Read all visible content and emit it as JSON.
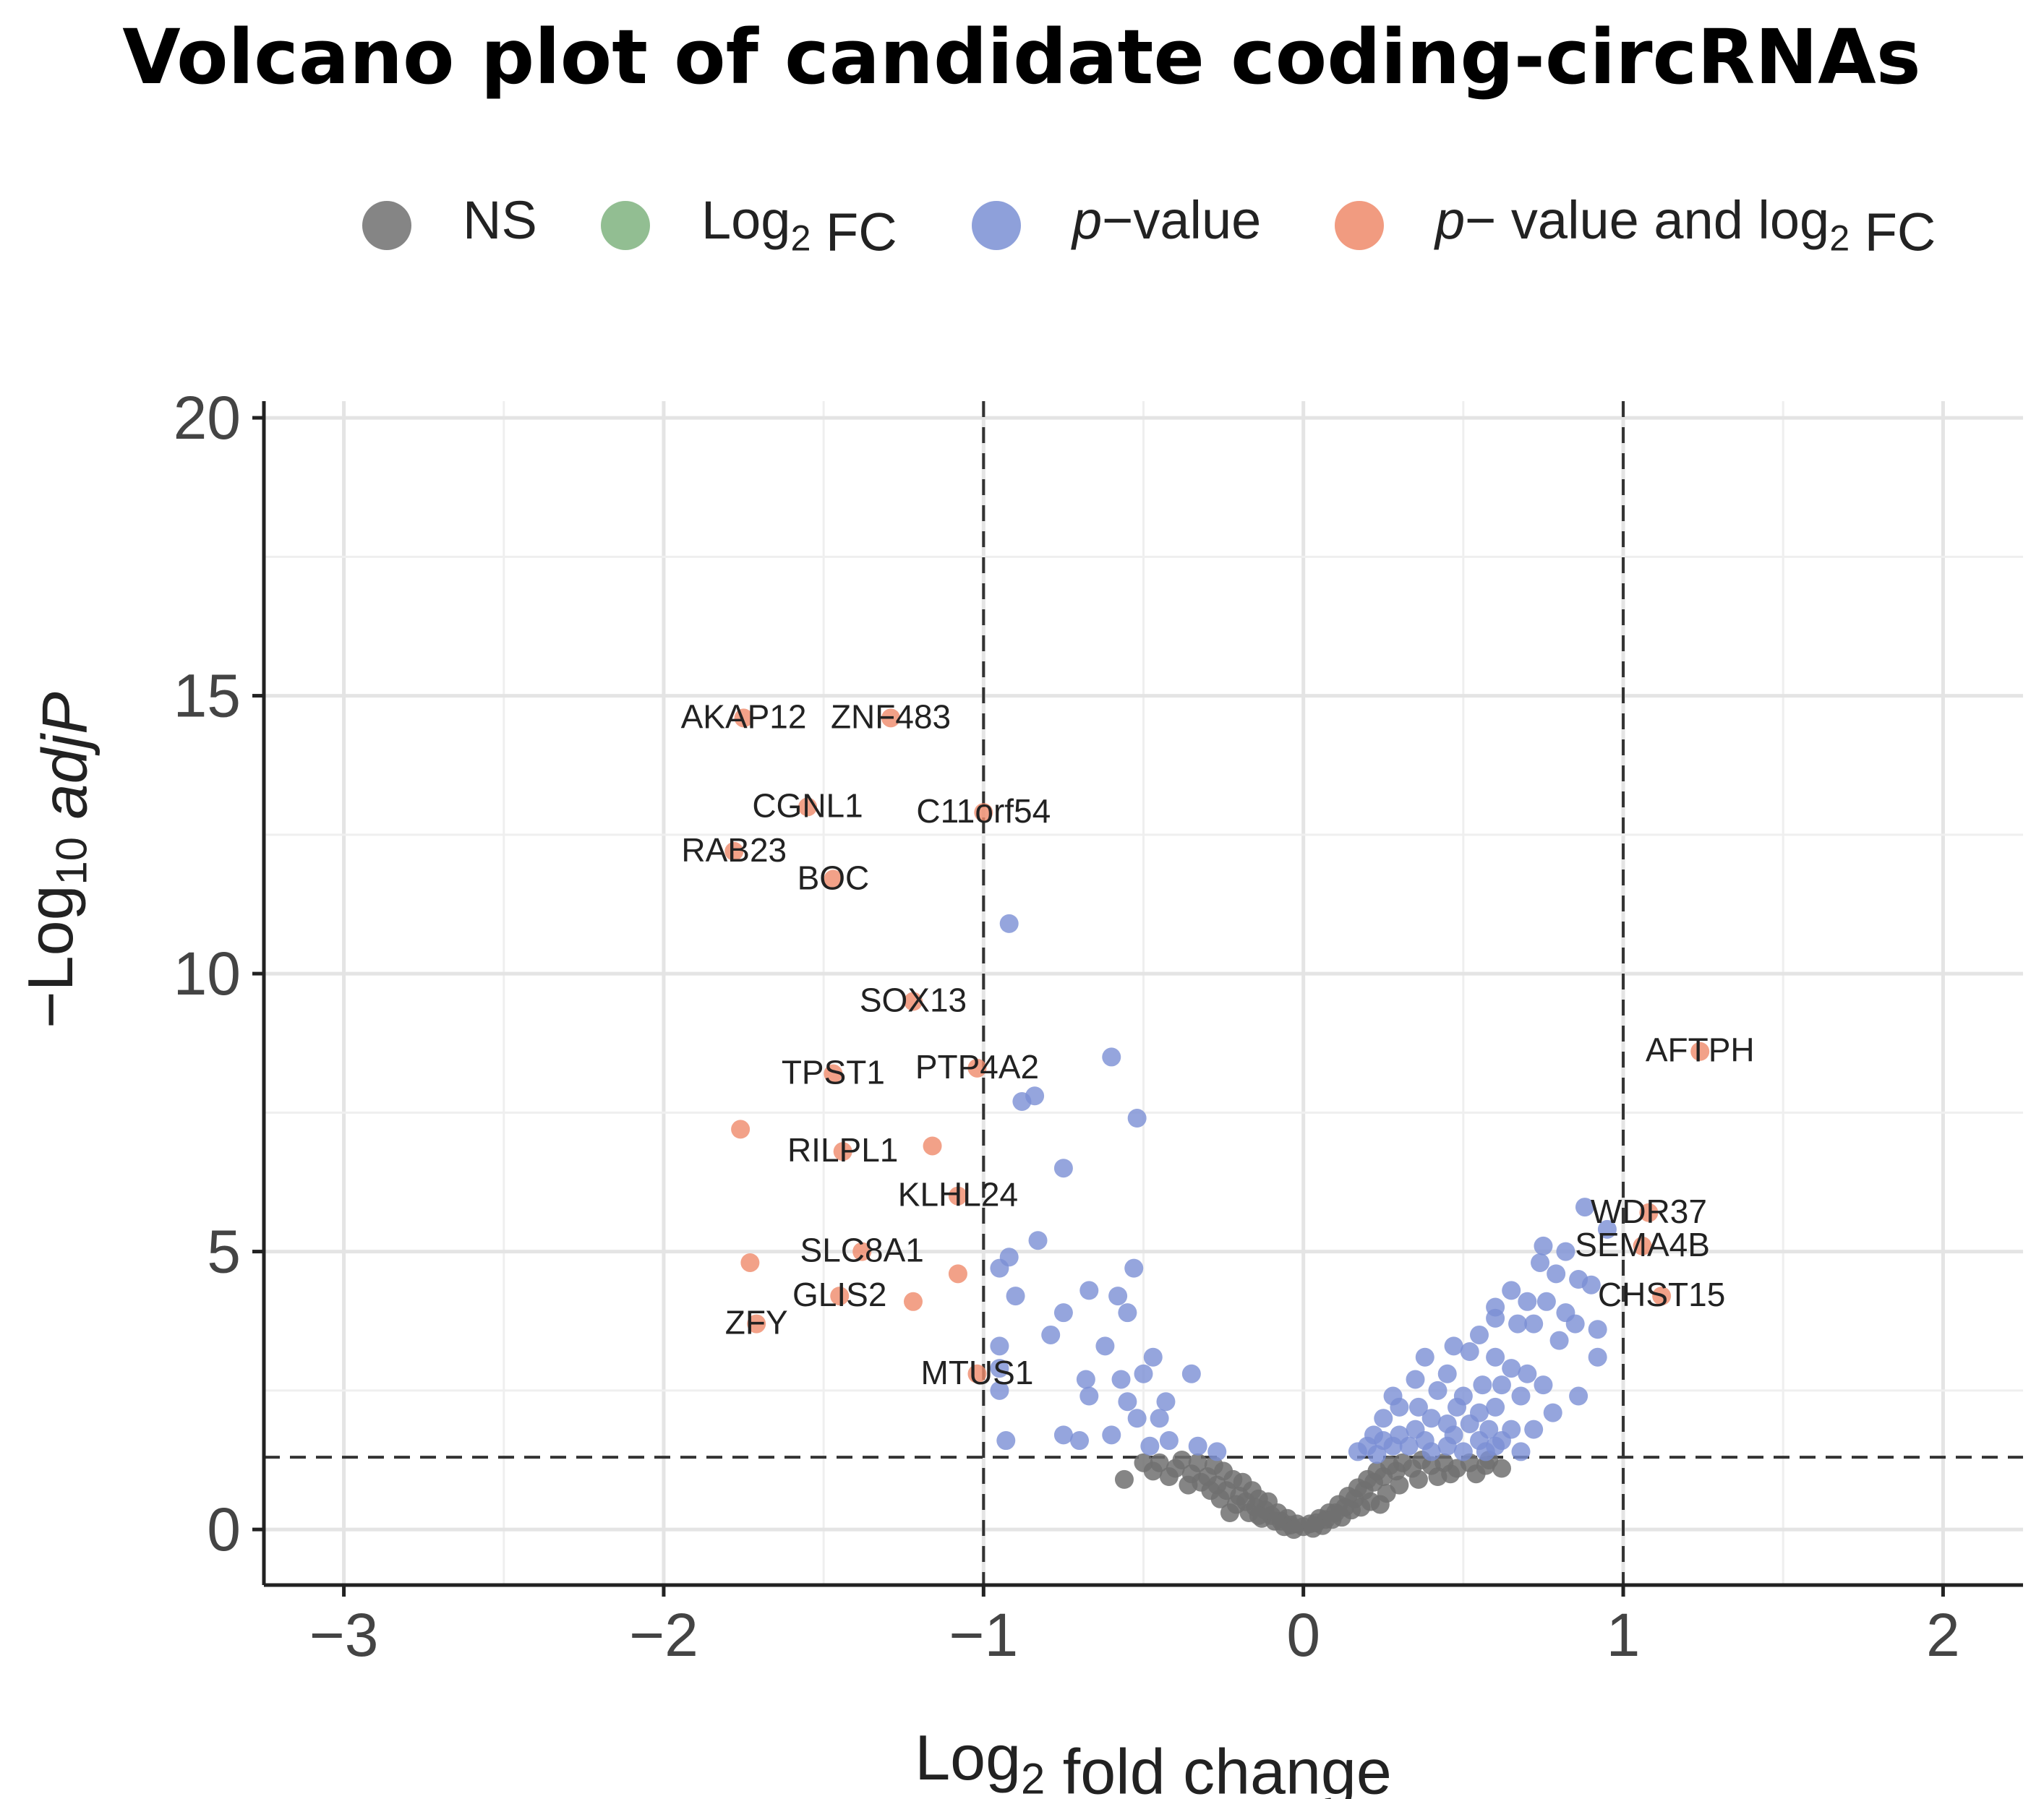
{
  "chart_data": {
    "type": "scatter",
    "title": "Volcano plot of candidate coding-circRNAs",
    "xlabel": "Log2 fold change",
    "ylabel": "−Log10 adjP",
    "xlim": [
      -3.25,
      2.25
    ],
    "ylim": [
      -1,
      20.3
    ],
    "xticks": [
      -3,
      -2,
      -1,
      0,
      1,
      2
    ],
    "xtick_labels": [
      "−3",
      "−2",
      "−1",
      "0",
      "1",
      "2"
    ],
    "yticks": [
      0,
      5,
      10,
      15,
      20
    ],
    "ytick_labels": [
      "0",
      "5",
      "10",
      "15",
      "20"
    ],
    "vlines": [
      -1,
      1
    ],
    "hline": 1.3,
    "grid": true,
    "legend_position": "top",
    "colors": {
      "NS": "#707070",
      "Log2 FC": "#7fb37f",
      "p-value": "#7a8fd4",
      "p-value and log2 FC": "#ef8a6a"
    },
    "legend": [
      {
        "key": "NS",
        "parts": [
          {
            "t": "NS"
          }
        ]
      },
      {
        "key": "Log2 FC",
        "parts": [
          {
            "t": "Log"
          },
          {
            "t": "2",
            "sub": true
          },
          {
            "t": " FC"
          }
        ]
      },
      {
        "key": "p-value",
        "parts": [
          {
            "t": "p",
            "italic": true
          },
          {
            "t": "−value"
          }
        ]
      },
      {
        "key": "p-value and log2 FC",
        "parts": [
          {
            "t": "p",
            "italic": true
          },
          {
            "t": "− value and log"
          },
          {
            "t": "2",
            "sub": true
          },
          {
            "t": " FC"
          }
        ]
      }
    ],
    "series": [
      {
        "name": "p-value and log2 FC",
        "points": [
          {
            "x": -1.75,
            "y": 14.6,
            "label": "AKAP12"
          },
          {
            "x": -1.29,
            "y": 14.6,
            "label": "ZNF483"
          },
          {
            "x": -1.55,
            "y": 13.0,
            "label": "CGNL1"
          },
          {
            "x": -1.0,
            "y": 12.9,
            "label": "C11orf54"
          },
          {
            "x": -1.78,
            "y": 12.2,
            "label": "RAB23"
          },
          {
            "x": -1.47,
            "y": 11.7,
            "label": "BOC"
          },
          {
            "x": -1.22,
            "y": 9.5,
            "label": "SOX13"
          },
          {
            "x": -1.47,
            "y": 8.2,
            "label": "TPST1"
          },
          {
            "x": -1.02,
            "y": 8.3,
            "label": "PTP4A2"
          },
          {
            "x": -1.76,
            "y": 7.2
          },
          {
            "x": -1.44,
            "y": 6.8,
            "label": "RILPL1"
          },
          {
            "x": -1.16,
            "y": 6.9
          },
          {
            "x": -1.08,
            "y": 6.0,
            "label": "KLHL24"
          },
          {
            "x": -1.38,
            "y": 5.0,
            "label": "SLC8A1"
          },
          {
            "x": -1.73,
            "y": 4.8
          },
          {
            "x": -1.08,
            "y": 4.6
          },
          {
            "x": -1.45,
            "y": 4.2,
            "label": "GLIS2"
          },
          {
            "x": -1.22,
            "y": 4.1
          },
          {
            "x": -1.71,
            "y": 3.7,
            "label": "ZFY"
          },
          {
            "x": -1.02,
            "y": 2.8,
            "label": "MTUS1"
          },
          {
            "x": 1.24,
            "y": 8.6,
            "label": "AFTPH"
          },
          {
            "x": 1.08,
            "y": 5.7,
            "label": "WDR37"
          },
          {
            "x": 1.06,
            "y": 5.1,
            "label": "SEMA4B"
          },
          {
            "x": 1.12,
            "y": 4.2,
            "label": "CHST15"
          }
        ]
      },
      {
        "name": "p-value",
        "points": [
          {
            "x": -0.92,
            "y": 10.9
          },
          {
            "x": -0.6,
            "y": 8.5
          },
          {
            "x": -0.88,
            "y": 7.7
          },
          {
            "x": -0.84,
            "y": 7.8
          },
          {
            "x": -0.52,
            "y": 7.4
          },
          {
            "x": -0.75,
            "y": 6.5
          },
          {
            "x": -0.83,
            "y": 5.2
          },
          {
            "x": -0.92,
            "y": 4.9
          },
          {
            "x": -0.95,
            "y": 4.7
          },
          {
            "x": -0.53,
            "y": 4.7
          },
          {
            "x": -0.9,
            "y": 4.2
          },
          {
            "x": -0.67,
            "y": 4.3
          },
          {
            "x": -0.58,
            "y": 4.2
          },
          {
            "x": -0.75,
            "y": 3.9
          },
          {
            "x": -0.55,
            "y": 3.9
          },
          {
            "x": -0.79,
            "y": 3.5
          },
          {
            "x": -0.95,
            "y": 3.3
          },
          {
            "x": -0.62,
            "y": 3.3
          },
          {
            "x": -0.47,
            "y": 3.1
          },
          {
            "x": -0.95,
            "y": 2.9
          },
          {
            "x": -0.68,
            "y": 2.7
          },
          {
            "x": -0.57,
            "y": 2.7
          },
          {
            "x": -0.5,
            "y": 2.8
          },
          {
            "x": -0.35,
            "y": 2.8
          },
          {
            "x": -0.95,
            "y": 2.5
          },
          {
            "x": -0.67,
            "y": 2.4
          },
          {
            "x": -0.55,
            "y": 2.3
          },
          {
            "x": -0.43,
            "y": 2.3
          },
          {
            "x": -0.52,
            "y": 2.0
          },
          {
            "x": -0.45,
            "y": 2.0
          },
          {
            "x": -0.93,
            "y": 1.6
          },
          {
            "x": -0.75,
            "y": 1.7
          },
          {
            "x": -0.7,
            "y": 1.6
          },
          {
            "x": -0.6,
            "y": 1.7
          },
          {
            "x": -0.48,
            "y": 1.5
          },
          {
            "x": -0.42,
            "y": 1.6
          },
          {
            "x": -0.33,
            "y": 1.5
          },
          {
            "x": -0.27,
            "y": 1.4
          },
          {
            "x": 0.88,
            "y": 5.8
          },
          {
            "x": 0.95,
            "y": 5.4
          },
          {
            "x": 0.75,
            "y": 5.1
          },
          {
            "x": 0.82,
            "y": 5.0
          },
          {
            "x": 0.74,
            "y": 4.8
          },
          {
            "x": 0.79,
            "y": 4.6
          },
          {
            "x": 0.86,
            "y": 4.5
          },
          {
            "x": 0.9,
            "y": 4.4
          },
          {
            "x": 0.65,
            "y": 4.3
          },
          {
            "x": 0.7,
            "y": 4.1
          },
          {
            "x": 0.6,
            "y": 4.0
          },
          {
            "x": 0.76,
            "y": 4.1
          },
          {
            "x": 0.82,
            "y": 3.9
          },
          {
            "x": 0.85,
            "y": 3.7
          },
          {
            "x": 0.92,
            "y": 3.6
          },
          {
            "x": 0.6,
            "y": 3.8
          },
          {
            "x": 0.67,
            "y": 3.7
          },
          {
            "x": 0.72,
            "y": 3.7
          },
          {
            "x": 0.55,
            "y": 3.5
          },
          {
            "x": 0.8,
            "y": 3.4
          },
          {
            "x": 0.92,
            "y": 3.1
          },
          {
            "x": 0.47,
            "y": 3.3
          },
          {
            "x": 0.52,
            "y": 3.2
          },
          {
            "x": 0.38,
            "y": 3.1
          },
          {
            "x": 0.6,
            "y": 3.1
          },
          {
            "x": 0.65,
            "y": 2.9
          },
          {
            "x": 0.7,
            "y": 2.8
          },
          {
            "x": 0.45,
            "y": 2.8
          },
          {
            "x": 0.35,
            "y": 2.7
          },
          {
            "x": 0.56,
            "y": 2.6
          },
          {
            "x": 0.62,
            "y": 2.6
          },
          {
            "x": 0.75,
            "y": 2.6
          },
          {
            "x": 0.28,
            "y": 2.4
          },
          {
            "x": 0.42,
            "y": 2.5
          },
          {
            "x": 0.5,
            "y": 2.4
          },
          {
            "x": 0.68,
            "y": 2.4
          },
          {
            "x": 0.86,
            "y": 2.4
          },
          {
            "x": 0.3,
            "y": 2.2
          },
          {
            "x": 0.36,
            "y": 2.2
          },
          {
            "x": 0.48,
            "y": 2.2
          },
          {
            "x": 0.55,
            "y": 2.1
          },
          {
            "x": 0.6,
            "y": 2.2
          },
          {
            "x": 0.78,
            "y": 2.1
          },
          {
            "x": 0.25,
            "y": 2.0
          },
          {
            "x": 0.4,
            "y": 2.0
          },
          {
            "x": 0.45,
            "y": 1.9
          },
          {
            "x": 0.52,
            "y": 1.9
          },
          {
            "x": 0.58,
            "y": 1.8
          },
          {
            "x": 0.65,
            "y": 1.8
          },
          {
            "x": 0.72,
            "y": 1.8
          },
          {
            "x": 0.22,
            "y": 1.7
          },
          {
            "x": 0.3,
            "y": 1.7
          },
          {
            "x": 0.35,
            "y": 1.8
          },
          {
            "x": 0.38,
            "y": 1.6
          },
          {
            "x": 0.47,
            "y": 1.7
          },
          {
            "x": 0.55,
            "y": 1.6
          },
          {
            "x": 0.62,
            "y": 1.6
          },
          {
            "x": 0.2,
            "y": 1.5
          },
          {
            "x": 0.25,
            "y": 1.6
          },
          {
            "x": 0.28,
            "y": 1.5
          },
          {
            "x": 0.33,
            "y": 1.5
          },
          {
            "x": 0.4,
            "y": 1.4
          },
          {
            "x": 0.45,
            "y": 1.5
          },
          {
            "x": 0.5,
            "y": 1.4
          },
          {
            "x": 0.57,
            "y": 1.4
          },
          {
            "x": 0.6,
            "y": 1.5
          },
          {
            "x": 0.68,
            "y": 1.4
          },
          {
            "x": 0.17,
            "y": 1.4
          },
          {
            "x": 0.23,
            "y": 1.35
          }
        ]
      },
      {
        "name": "NS",
        "points": [
          {
            "x": -0.56,
            "y": 0.9
          },
          {
            "x": -0.45,
            "y": 1.2
          },
          {
            "x": -0.4,
            "y": 1.1
          },
          {
            "x": -0.38,
            "y": 1.25
          },
          {
            "x": -0.35,
            "y": 1.0
          },
          {
            "x": -0.33,
            "y": 1.2
          },
          {
            "x": -0.3,
            "y": 0.95
          },
          {
            "x": -0.28,
            "y": 1.15
          },
          {
            "x": -0.27,
            "y": 0.8
          },
          {
            "x": -0.25,
            "y": 1.05
          },
          {
            "x": -0.24,
            "y": 0.7
          },
          {
            "x": -0.22,
            "y": 0.9
          },
          {
            "x": -0.2,
            "y": 0.6
          },
          {
            "x": -0.19,
            "y": 0.85
          },
          {
            "x": -0.18,
            "y": 0.5
          },
          {
            "x": -0.16,
            "y": 0.7
          },
          {
            "x": -0.15,
            "y": 0.4
          },
          {
            "x": -0.14,
            "y": 0.55
          },
          {
            "x": -0.12,
            "y": 0.35
          },
          {
            "x": -0.11,
            "y": 0.5
          },
          {
            "x": -0.1,
            "y": 0.25
          },
          {
            "x": -0.08,
            "y": 0.3
          },
          {
            "x": -0.07,
            "y": 0.15
          },
          {
            "x": -0.05,
            "y": 0.2
          },
          {
            "x": -0.04,
            "y": 0.08
          },
          {
            "x": -0.02,
            "y": 0.1
          },
          {
            "x": 0.0,
            "y": 0.05
          },
          {
            "x": 0.02,
            "y": 0.1
          },
          {
            "x": 0.04,
            "y": 0.12
          },
          {
            "x": 0.05,
            "y": 0.2
          },
          {
            "x": 0.07,
            "y": 0.18
          },
          {
            "x": 0.08,
            "y": 0.3
          },
          {
            "x": 0.1,
            "y": 0.3
          },
          {
            "x": 0.11,
            "y": 0.45
          },
          {
            "x": 0.13,
            "y": 0.4
          },
          {
            "x": 0.14,
            "y": 0.6
          },
          {
            "x": 0.16,
            "y": 0.55
          },
          {
            "x": 0.17,
            "y": 0.75
          },
          {
            "x": 0.19,
            "y": 0.7
          },
          {
            "x": 0.2,
            "y": 0.9
          },
          {
            "x": 0.22,
            "y": 0.85
          },
          {
            "x": 0.23,
            "y": 1.05
          },
          {
            "x": 0.25,
            "y": 0.95
          },
          {
            "x": 0.27,
            "y": 1.15
          },
          {
            "x": 0.29,
            "y": 1.05
          },
          {
            "x": 0.31,
            "y": 1.2
          },
          {
            "x": 0.34,
            "y": 1.1
          },
          {
            "x": 0.37,
            "y": 1.25
          },
          {
            "x": 0.4,
            "y": 1.15
          },
          {
            "x": 0.44,
            "y": 1.2
          },
          {
            "x": 0.48,
            "y": 1.1
          },
          {
            "x": 0.52,
            "y": 1.2
          },
          {
            "x": 0.57,
            "y": 1.15
          },
          {
            "x": 0.62,
            "y": 1.1
          },
          {
            "x": 0.58,
            "y": 1.25
          },
          {
            "x": 0.54,
            "y": 1.0
          },
          {
            "x": 0.46,
            "y": 1.0
          },
          {
            "x": 0.42,
            "y": 0.95
          },
          {
            "x": 0.36,
            "y": 0.9
          },
          {
            "x": 0.3,
            "y": 0.8
          },
          {
            "x": 0.26,
            "y": 0.65
          },
          {
            "x": 0.21,
            "y": 0.5
          },
          {
            "x": 0.15,
            "y": 0.35
          },
          {
            "x": 0.09,
            "y": 0.18
          },
          {
            "x": -0.09,
            "y": 0.15
          },
          {
            "x": -0.13,
            "y": 0.2
          },
          {
            "x": -0.17,
            "y": 0.3
          },
          {
            "x": -0.21,
            "y": 0.45
          },
          {
            "x": -0.26,
            "y": 0.55
          },
          {
            "x": -0.29,
            "y": 0.7
          },
          {
            "x": -0.32,
            "y": 0.85
          },
          {
            "x": -0.36,
            "y": 0.8
          },
          {
            "x": -0.42,
            "y": 0.95
          },
          {
            "x": -0.47,
            "y": 1.05
          },
          {
            "x": -0.5,
            "y": 1.2
          },
          {
            "x": -0.03,
            "y": 0.0
          },
          {
            "x": 0.03,
            "y": 0.02
          },
          {
            "x": -0.06,
            "y": 0.05
          },
          {
            "x": 0.06,
            "y": 0.07
          },
          {
            "x": 0.12,
            "y": 0.22
          },
          {
            "x": -0.14,
            "y": 0.25
          },
          {
            "x": 0.18,
            "y": 0.4
          },
          {
            "x": -0.23,
            "y": 0.3
          },
          {
            "x": 0.24,
            "y": 0.45
          }
        ]
      }
    ]
  }
}
